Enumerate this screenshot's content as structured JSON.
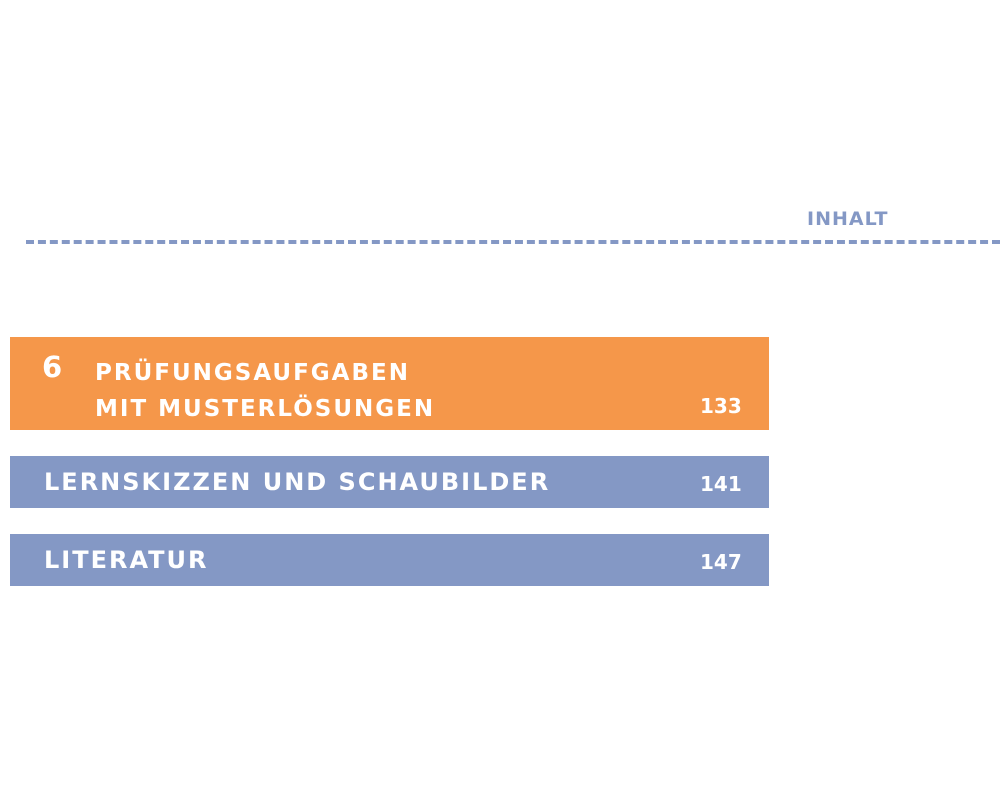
{
  "header": {
    "label": "INHALT"
  },
  "colors": {
    "accent_blue": "#8498c5",
    "accent_orange": "#f5974a"
  },
  "entries": [
    {
      "number": "6",
      "title_lines": [
        "PRÜFUNGSAUFGABEN",
        "MIT MUSTERLÖSUNGEN"
      ],
      "page": "133"
    },
    {
      "title": "LERNSKIZZEN UND SCHAUBILDER",
      "page": "141"
    },
    {
      "title": "LITERATUR",
      "page": "147"
    }
  ]
}
